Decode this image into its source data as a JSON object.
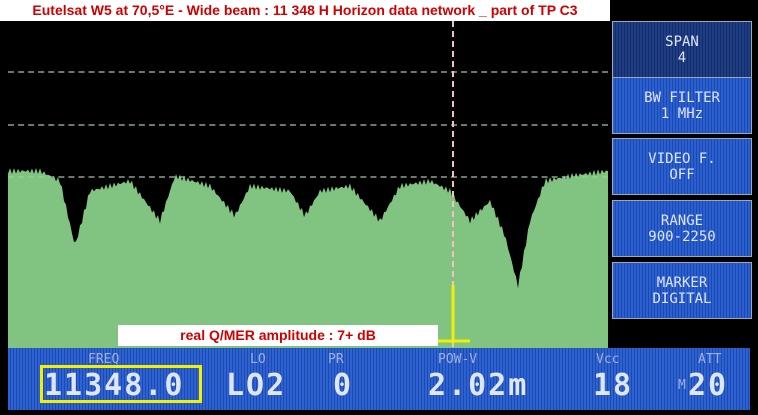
{
  "title": "Eutelsat W5 at 70,5°E - Wide beam : 11 348 H Horizon data network _ part of TP C3",
  "annotation": "real Q/MER amplitude : 7+ dB",
  "softkeys": [
    {
      "line1": "SPAN",
      "line2": "4"
    },
    {
      "line1": "BW FILTER",
      "line2": "1 MHz"
    },
    {
      "line1": "VIDEO F.",
      "line2": "OFF"
    },
    {
      "line1": "RANGE",
      "line2": "900-2250"
    },
    {
      "line1": "MARKER",
      "line2": "DIGITAL"
    }
  ],
  "status": {
    "freq_label": "FREQ",
    "freq_value": "11348.0",
    "lo_label": "LO",
    "lo_value": "LO2",
    "pr_label": "PR",
    "pr_value": "0",
    "pow_label": "POW-V",
    "pow_value": "2.02m",
    "vcc_label": "Vcc",
    "vcc_value": "18",
    "att_label": "ATT",
    "att_prefix": "M",
    "att_value": "20"
  },
  "colors": {
    "trace": "#8fd88f",
    "marker": "#f0f000",
    "panel": "#2a5fd0",
    "title_text": "#d00000"
  }
}
